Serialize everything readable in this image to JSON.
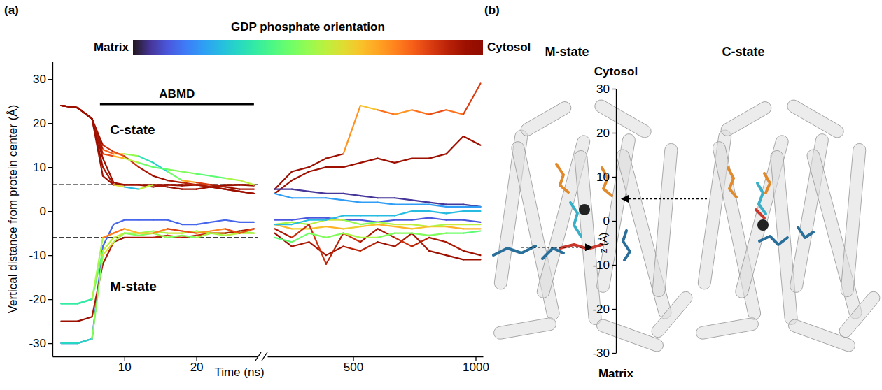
{
  "chart_data": [
    {
      "type": "line",
      "panel_label": "(a)",
      "ylabel": "Vertical distance from protein center (Å)",
      "xlabel": "Time (ns)",
      "xlim": [
        0,
        28.5
      ],
      "xticks": [
        10,
        20
      ],
      "ylim": [
        -33,
        34
      ],
      "yticks": [
        -30,
        -20,
        -10,
        0,
        10,
        20,
        30
      ],
      "colorbar": {
        "title": "GDP phosphate orientation",
        "low_label": "Matrix",
        "high_label": "Cytosol",
        "range": [
          0,
          1
        ]
      },
      "hlines": [
        6,
        -6
      ],
      "annotations": [
        {
          "text": "ABMD",
          "x": [
            6.6,
            28
          ],
          "y": 24.3
        },
        {
          "text": "C-state",
          "x": 8,
          "y": 18.5
        },
        {
          "text": "M-state",
          "x": 8,
          "y": -17
        }
      ],
      "x": [
        1.2,
        3.5,
        5.5,
        7,
        8.5,
        10,
        12,
        14,
        16,
        18,
        20,
        22,
        24,
        26,
        28
      ],
      "series": [
        {
          "values": [
            24,
            23.5,
            21,
            8,
            6,
            6,
            6,
            6,
            6,
            5.8,
            6,
            6,
            5.8,
            6,
            5.8
          ],
          "orientation": [
            0.95,
            0.95,
            0.95,
            0.95,
            0.95,
            0.95,
            0.95,
            0.95,
            0.95,
            0.95,
            0.95,
            0.95,
            0.95,
            0.95,
            0.95
          ]
        },
        {
          "values": [
            24,
            23.5,
            21,
            12,
            6.5,
            6,
            6,
            5.5,
            6,
            6,
            6,
            5.5,
            6,
            6,
            6
          ],
          "orientation": [
            0.95,
            0.95,
            0.95,
            0.95,
            0.95,
            0.95,
            0.95,
            0.95,
            0.95,
            0.95,
            0.95,
            0.95,
            0.95,
            0.95,
            0.95
          ]
        },
        {
          "values": [
            24,
            23.5,
            21,
            14,
            13,
            13,
            12.5,
            11,
            9,
            7,
            6.5,
            6,
            5.5,
            5,
            5
          ],
          "orientation": [
            0.95,
            0.95,
            0.95,
            0.9,
            0.7,
            0.6,
            0.4,
            0.25,
            0.3,
            0.6,
            0.8,
            0.9,
            0.95,
            0.95,
            0.9
          ]
        },
        {
          "values": [
            24,
            23.5,
            21,
            15,
            13.5,
            12.5,
            10,
            8,
            7,
            6.5,
            6,
            5.5,
            5,
            4.5,
            4
          ],
          "orientation": [
            0.95,
            0.95,
            0.95,
            0.95,
            0.8,
            0.85,
            0.9,
            0.95,
            0.95,
            0.9,
            0.9,
            0.95,
            0.95,
            0.9,
            0.95
          ]
        },
        {
          "values": [
            24,
            23.5,
            21,
            13,
            12.5,
            12,
            11,
            10,
            9.5,
            9,
            8.5,
            8,
            7.5,
            7,
            6
          ],
          "orientation": [
            0.95,
            0.95,
            0.95,
            0.9,
            0.75,
            0.6,
            0.5,
            0.4,
            0.45,
            0.5,
            0.45,
            0.4,
            0.45,
            0.6,
            0.5
          ]
        },
        {
          "values": [
            24,
            23.5,
            21,
            10,
            6,
            5.5,
            5,
            6,
            5.5,
            5,
            5,
            5.5,
            5,
            4.5,
            4
          ],
          "orientation": [
            0.95,
            0.95,
            0.95,
            0.95,
            0.9,
            0.3,
            0.2,
            0.9,
            0.95,
            0.95,
            0.95,
            0.95,
            0.95,
            0.95,
            0.95
          ]
        },
        {
          "values": [
            -30,
            -30,
            -29,
            -8,
            -3,
            -2,
            -2,
            -2,
            -2,
            -3,
            -3,
            -2.5,
            -2,
            -2.5,
            -2.5
          ],
          "orientation": [
            0.12,
            0.12,
            0.12,
            0.12,
            0.12,
            0.12,
            0.12,
            0.12,
            0.12,
            0.12,
            0.12,
            0.12,
            0.12,
            0.12,
            0.12
          ]
        },
        {
          "values": [
            -21,
            -21,
            -20,
            -9,
            -6,
            -5,
            -5,
            -4.5,
            -5,
            -5,
            -4.5,
            -5,
            -5,
            -4.5,
            -5
          ],
          "orientation": [
            0.35,
            0.35,
            0.35,
            0.5,
            0.6,
            0.55,
            0.5,
            0.5,
            0.55,
            0.6,
            0.5,
            0.55,
            0.5,
            0.45,
            0.5
          ]
        },
        {
          "values": [
            -25,
            -25,
            -24,
            -12,
            -7,
            -6,
            -6,
            -6,
            -5.5,
            -6,
            -5.5,
            -5,
            -5,
            -4.5,
            -4
          ],
          "orientation": [
            0.95,
            0.95,
            0.95,
            0.9,
            0.95,
            0.95,
            0.9,
            0.95,
            0.85,
            0.9,
            0.95,
            0.8,
            0.9,
            0.95,
            0.9
          ]
        },
        {
          "values": [
            -30,
            -30,
            -29,
            -10,
            -7,
            -5,
            -5.5,
            -5,
            -6,
            -5.5,
            -6,
            -5,
            -5.5,
            -5,
            -5
          ],
          "orientation": [
            0.3,
            0.3,
            0.3,
            0.65,
            0.55,
            0.5,
            0.45,
            0.5,
            0.5,
            0.45,
            0.5,
            0.55,
            0.5,
            0.6,
            0.5
          ]
        },
        {
          "values": [
            -21,
            -21,
            -20,
            -6,
            -5,
            -4,
            -5,
            -5,
            -4,
            -4.5,
            -5,
            -4.5,
            -4,
            -5,
            -4
          ],
          "orientation": [
            0.35,
            0.35,
            0.35,
            0.7,
            0.8,
            0.75,
            0.6,
            0.7,
            0.8,
            0.9,
            0.75,
            0.7,
            0.8,
            0.85,
            0.8
          ]
        }
      ]
    },
    {
      "type": "line",
      "tick_labels": "x",
      "xlim": [
        150,
        1030
      ],
      "xticks": [
        500,
        1000
      ],
      "ylim": [
        -33,
        34
      ],
      "x": [
        180,
        250,
        320,
        390,
        460,
        530,
        600,
        670,
        740,
        810,
        880,
        950,
        1020
      ],
      "series": [
        {
          "values": [
            5,
            9,
            10,
            12,
            13,
            24,
            23,
            22,
            23,
            22,
            23,
            22,
            29
          ],
          "orientation": [
            0.95,
            0.95,
            0.95,
            0.95,
            0.95,
            0.5,
            0.8,
            0.75,
            0.7,
            0.85,
            0.8,
            0.75,
            0.95
          ]
        },
        {
          "values": [
            4,
            7,
            9,
            10,
            10,
            11,
            12,
            11,
            12,
            12,
            13,
            17,
            15
          ],
          "orientation": [
            0.95,
            0.95,
            0.95,
            0.95,
            0.95,
            0.95,
            0.95,
            0.95,
            0.95,
            0.95,
            0.95,
            0.95,
            0.95
          ]
        },
        {
          "values": [
            5,
            5,
            4.5,
            4,
            4,
            3.5,
            3,
            3,
            2.5,
            2,
            1.5,
            1.5,
            1
          ],
          "orientation": [
            0.05,
            0.05,
            0.05,
            0.05,
            0.05,
            0.05,
            0.05,
            0.05,
            0.05,
            0.05,
            0.05,
            0.05,
            0.05
          ]
        },
        {
          "values": [
            4,
            3,
            3,
            3,
            2.5,
            2,
            2,
            1.5,
            1.5,
            1.5,
            1,
            1,
            1
          ],
          "orientation": [
            0.2,
            0.2,
            0.2,
            0.2,
            0.2,
            0.2,
            0.2,
            0.2,
            0.2,
            0.2,
            0.2,
            0.2,
            0.2
          ]
        },
        {
          "values": [
            -2,
            -2,
            -1.5,
            -1.5,
            -2,
            -2,
            -2.5,
            -2,
            -2,
            -1.5,
            -2,
            -2,
            -2.5
          ],
          "orientation": [
            0.1,
            0.1,
            0.1,
            0.1,
            0.1,
            0.1,
            0.1,
            0.1,
            0.1,
            0.1,
            0.1,
            0.1,
            0.1
          ]
        },
        {
          "values": [
            -3,
            -2.5,
            -3,
            -2,
            -2,
            -3,
            -2.5,
            -3,
            -3,
            -3.5,
            -3,
            -3,
            -3
          ],
          "orientation": [
            0.5,
            0.55,
            0.5,
            0.6,
            0.55,
            0.45,
            0.5,
            0.55,
            0.6,
            0.5,
            0.55,
            0.6,
            0.5
          ]
        },
        {
          "values": [
            -3,
            -4,
            -4,
            -3.5,
            -4,
            -3.5,
            -3,
            -3.5,
            -4,
            -3.5,
            -3.5,
            -4,
            -4
          ],
          "orientation": [
            0.7,
            0.65,
            0.6,
            0.7,
            0.65,
            0.6,
            0.7,
            0.65,
            0.7,
            0.6,
            0.65,
            0.7,
            0.65
          ]
        },
        {
          "values": [
            -5,
            -8,
            -7,
            -10,
            -8,
            -9,
            -7,
            -8,
            -5,
            -9,
            -10,
            -11,
            -11
          ],
          "orientation": [
            0.95,
            0.95,
            0.9,
            0.95,
            0.95,
            0.85,
            0.95,
            0.95,
            0.9,
            0.95,
            0.95,
            0.95,
            0.95
          ]
        },
        {
          "values": [
            -4,
            -6,
            -3,
            -12,
            -5,
            -7,
            -4,
            -6,
            -8,
            -6,
            -7,
            -9,
            -10
          ],
          "orientation": [
            0.9,
            0.95,
            0.8,
            0.95,
            0.85,
            0.9,
            0.95,
            0.9,
            0.85,
            0.95,
            0.9,
            0.95,
            0.95
          ]
        },
        {
          "values": [
            -6,
            -7,
            -5,
            -6,
            -5,
            -6,
            -6,
            -5,
            -5,
            -5.5,
            -5,
            -5,
            -4.5
          ],
          "orientation": [
            0.45,
            0.4,
            0.5,
            0.45,
            0.5,
            0.55,
            0.5,
            0.45,
            0.5,
            0.45,
            0.5,
            0.4,
            0.45
          ]
        },
        {
          "values": [
            -3,
            -3,
            -2,
            -2,
            -1,
            -1,
            -1,
            -1,
            0,
            0,
            -0.5,
            0,
            0
          ],
          "orientation": [
            0.25,
            0.25,
            0.25,
            0.25,
            0.25,
            0.25,
            0.25,
            0.25,
            0.25,
            0.25,
            0.25,
            0.25,
            0.25
          ]
        }
      ]
    }
  ],
  "diagram": {
    "label": "(b)",
    "panels": [
      {
        "title": "M-state",
        "z": -6
      },
      {
        "title": "C-state",
        "z": 5
      }
    ],
    "z_axis": {
      "title": "z (Å)",
      "top_label": "Cytosol",
      "bottom_label": "Matrix",
      "lim": [
        -30,
        30
      ],
      "ticks": [
        -30,
        -20,
        -10,
        0,
        10,
        20,
        30
      ]
    }
  }
}
